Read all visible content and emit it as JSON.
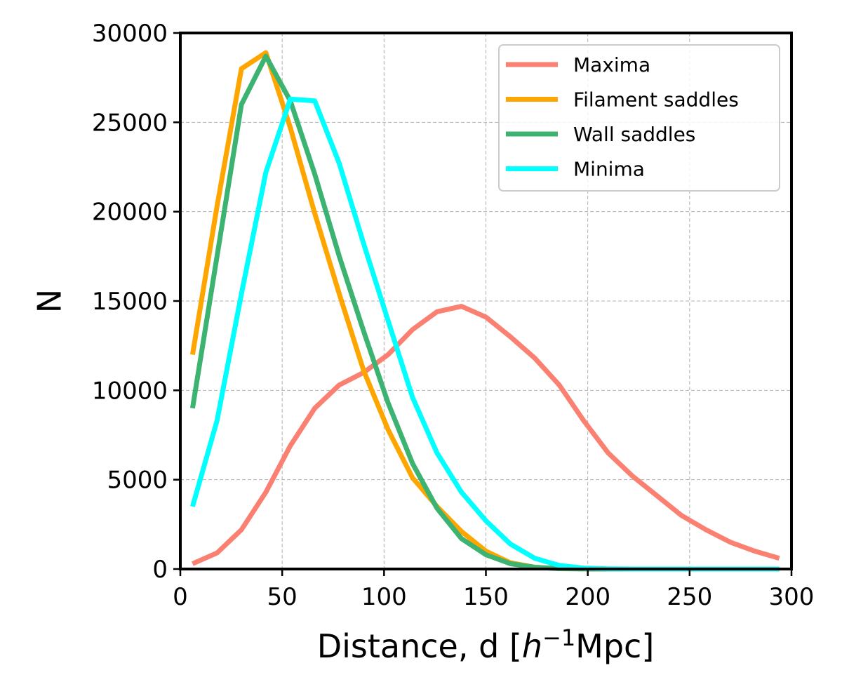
{
  "chart_data": {
    "type": "line",
    "title": "",
    "xlabel": "Distance, d [h⁻¹Mpc]",
    "xlabel_parts": {
      "pre": "Distance, d [",
      "italic": "h",
      "sup": "−1",
      "post": "Mpc]"
    },
    "ylabel": "N",
    "xlim": [
      0,
      300
    ],
    "ylim": [
      0,
      30000
    ],
    "xticks": [
      0,
      50,
      100,
      150,
      200,
      250,
      300
    ],
    "yticks": [
      0,
      5000,
      10000,
      15000,
      20000,
      25000,
      30000
    ],
    "grid": true,
    "legend_position": "top-right",
    "x": [
      6,
      18,
      30,
      42,
      54,
      66,
      78,
      90,
      102,
      114,
      126,
      138,
      150,
      162,
      174,
      186,
      198,
      210,
      222,
      234,
      246,
      258,
      270,
      282,
      294
    ],
    "series": [
      {
        "name": "Maxima",
        "color": "#fa8072",
        "values": [
          300,
          900,
          2200,
          4300,
          6900,
          9000,
          10300,
          11000,
          12000,
          13400,
          14400,
          14700,
          14100,
          13000,
          11800,
          10300,
          8300,
          6500,
          5200,
          4100,
          3000,
          2200,
          1500,
          1000,
          600
        ]
      },
      {
        "name": "Filament saddles",
        "color": "#ffa500",
        "values": [
          12000,
          20300,
          28000,
          28900,
          24700,
          19900,
          15400,
          11100,
          7800,
          5100,
          3500,
          2100,
          1000,
          350,
          100,
          30,
          10,
          0,
          0,
          0,
          0,
          0,
          0,
          0,
          0
        ]
      },
      {
        "name": "Wall saddles",
        "color": "#3cb371",
        "values": [
          9000,
          17500,
          26000,
          28700,
          26200,
          22100,
          17500,
          13300,
          9300,
          5900,
          3400,
          1700,
          800,
          300,
          100,
          20,
          5,
          0,
          0,
          0,
          0,
          0,
          0,
          0,
          0
        ]
      },
      {
        "name": "Minima",
        "color": "#00ffff",
        "values": [
          3500,
          8300,
          15400,
          22200,
          26300,
          26200,
          22700,
          18200,
          13900,
          9600,
          6500,
          4300,
          2700,
          1400,
          600,
          200,
          50,
          10,
          0,
          0,
          0,
          0,
          0,
          0,
          0
        ]
      }
    ]
  }
}
